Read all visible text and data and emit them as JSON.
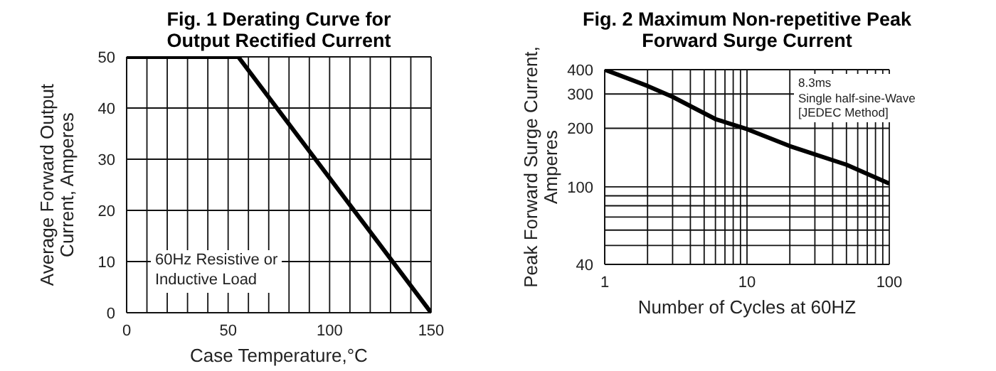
{
  "chart_data": [
    {
      "type": "line",
      "title": "Fig. 1 Derating Curve for\nOutput Rectified Current",
      "xlabel": "Case Temperature,°C",
      "ylabel": "Average Forward Output\nCurrent, Amperes",
      "x": [
        0,
        55,
        150
      ],
      "series": [
        {
          "color": "#000000",
          "values": [
            50,
            50,
            0
          ]
        }
      ],
      "xlim": [
        0,
        150
      ],
      "ylim": [
        0,
        50
      ],
      "xticks": [
        0,
        {
          "value": 10,
          "label": null
        },
        {
          "value": 20,
          "label": null
        },
        {
          "value": 30,
          "label": null
        },
        {
          "value": 40,
          "label": null
        },
        50,
        {
          "value": 60,
          "label": null
        },
        {
          "value": 70,
          "label": null
        },
        {
          "value": 80,
          "label": null
        },
        {
          "value": 90,
          "label": null
        },
        100,
        {
          "value": 110,
          "label": null
        },
        {
          "value": 120,
          "label": null
        },
        {
          "value": 130,
          "label": null
        },
        {
          "value": 140,
          "label": null
        },
        150
      ],
      "yticks": [
        0,
        10,
        20,
        30,
        40,
        50
      ],
      "grid": true,
      "annotations": [
        "60Hz Resistive or\nInductive Load"
      ]
    },
    {
      "type": "line",
      "title": "Fig. 2 Maximum Non-repetitive Peak\nForward Surge Current",
      "xlabel": "Number of Cycles at 60HZ",
      "ylabel": "Peak Forward Surge Current,\nAmperes",
      "x": [
        1,
        2,
        3,
        4,
        6,
        10,
        20,
        50,
        100
      ],
      "series": [
        {
          "color": "#000000",
          "values": [
            400,
            330,
            290,
            260,
            223,
            198,
            162,
            130,
            104
          ]
        }
      ],
      "xlim": [
        1,
        100
      ],
      "ylim": [
        40,
        400
      ],
      "log": "xy",
      "xticks": [
        1,
        {
          "value": 2,
          "label": null
        },
        {
          "value": 3,
          "label": null
        },
        {
          "value": 4,
          "label": null
        },
        {
          "value": 5,
          "label": null
        },
        {
          "value": 6,
          "label": null
        },
        {
          "value": 7,
          "label": null
        },
        {
          "value": 8,
          "label": null
        },
        {
          "value": 9,
          "label": null
        },
        10,
        {
          "value": 20,
          "label": null
        },
        {
          "value": 30,
          "label": null
        },
        {
          "value": 40,
          "label": null
        },
        {
          "value": 50,
          "label": null
        },
        {
          "value": 60,
          "label": null
        },
        {
          "value": 70,
          "label": null
        },
        {
          "value": 80,
          "label": null
        },
        {
          "value": 90,
          "label": null
        },
        100
      ],
      "yticks": [
        40,
        {
          "value": 50,
          "label": null
        },
        {
          "value": 60,
          "label": null
        },
        {
          "value": 70,
          "label": null
        },
        {
          "value": 80,
          "label": null
        },
        {
          "value": 90,
          "label": null
        },
        100,
        200,
        300,
        400
      ],
      "grid": true,
      "annotations": [
        "8.3ms\nSingle half-sine-Wave\n[JEDEC Method]"
      ]
    }
  ]
}
